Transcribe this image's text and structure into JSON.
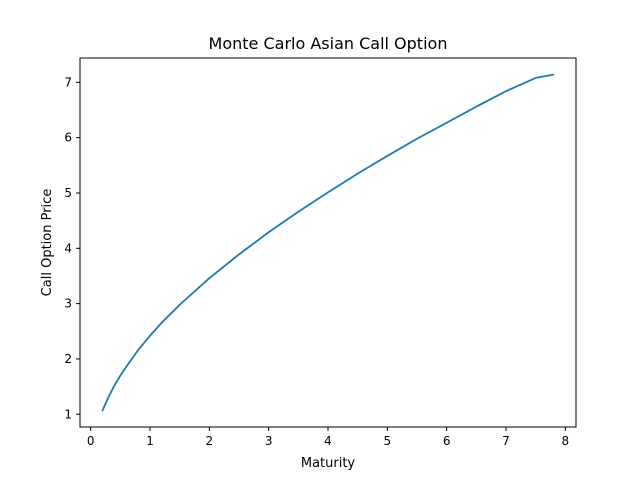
{
  "chart_data": {
    "type": "line",
    "title": "Monte Carlo Asian Call Option",
    "xlabel": "Maturity",
    "ylabel": "Call Option Price",
    "xlim": [
      -0.18,
      8.18
    ],
    "ylim": [
      0.77,
      7.44
    ],
    "xticks": [
      0,
      1,
      2,
      3,
      4,
      5,
      6,
      7,
      8
    ],
    "yticks": [
      1,
      2,
      3,
      4,
      5,
      6,
      7
    ],
    "grid": false,
    "legend": "none",
    "line_color": "#1f77b4",
    "series": [
      {
        "x": [
          0.2,
          0.3,
          0.4,
          0.5,
          0.6,
          0.8,
          1.0,
          1.2,
          1.5,
          2.0,
          2.5,
          3.0,
          3.5,
          4.0,
          4.5,
          5.0,
          5.5,
          6.0,
          6.5,
          7.0,
          7.5,
          7.8
        ],
        "values": [
          1.07,
          1.31,
          1.52,
          1.7,
          1.86,
          2.16,
          2.42,
          2.66,
          2.98,
          3.46,
          3.89,
          4.29,
          4.66,
          5.01,
          5.35,
          5.67,
          5.98,
          6.27,
          6.56,
          6.84,
          7.08,
          7.14
        ]
      }
    ]
  }
}
